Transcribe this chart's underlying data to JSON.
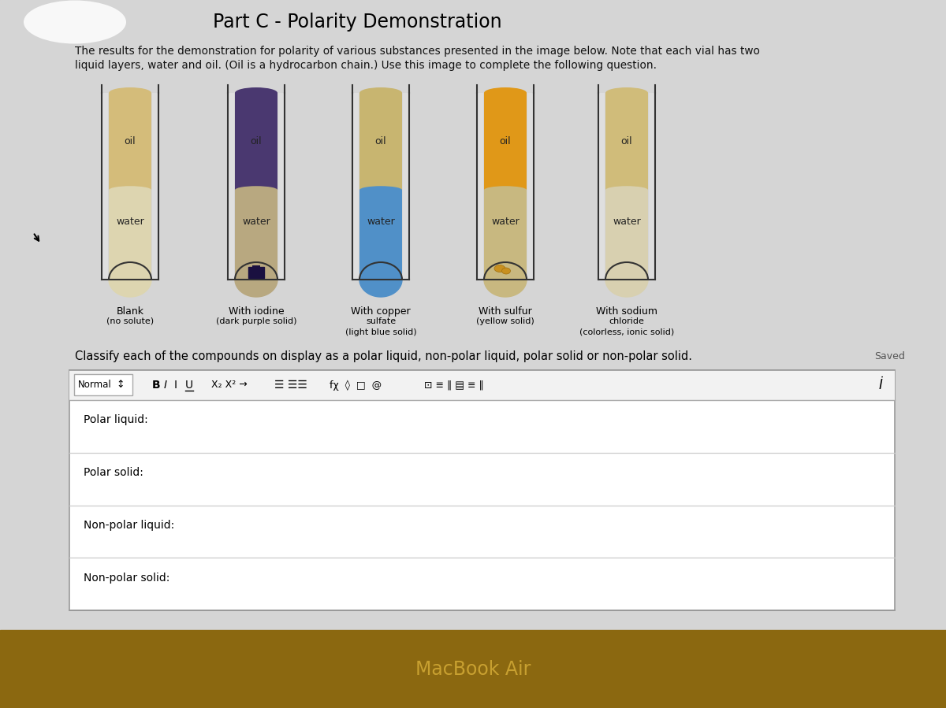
{
  "title": "Part C - Polarity Demonstration",
  "description_line1": "The results for the demonstration for polarity of various substances presented in the image below. Note that each vial has two",
  "description_line2": "liquid layers, water and oil. (Oil is a hydrocarbon chain.) Use this image to complete the following question.",
  "bg_color": "#c2c2c2",
  "vials": [
    {
      "labels": [
        "Blank",
        "(no solute)"
      ],
      "oil_color": "#d4bc7a",
      "water_color": "#ddd5b0",
      "has_solute": false,
      "solute_type": null
    },
    {
      "labels": [
        "With iodine",
        "(dark purple solid)"
      ],
      "oil_color": "#4a3870",
      "water_color": "#b8a880",
      "has_solute": true,
      "solute_type": "iodine"
    },
    {
      "labels": [
        "With copper",
        "sulfate",
        "(light blue solid)"
      ],
      "oil_color": "#c8b570",
      "water_color": "#5090c8",
      "has_solute": false,
      "solute_type": "copper"
    },
    {
      "labels": [
        "With sulfur",
        "(yellow solid)"
      ],
      "oil_color": "#e09818",
      "water_color": "#c8b880",
      "has_solute": true,
      "solute_type": "sulfur"
    },
    {
      "labels": [
        "With sodium",
        "chloride",
        "(colorless, ionic solid)"
      ],
      "oil_color": "#d0bc7a",
      "water_color": "#d8d0b0",
      "has_solute": false,
      "solute_type": null
    }
  ],
  "classify_text": "Classify each of the compounds on display as a polar liquid, non-polar liquid, polar solid or non-polar solid.",
  "saved_text": "Saved",
  "response_labels": [
    "Polar liquid:",
    "Polar solid:",
    "Non-polar liquid:",
    "Non-polar solid:"
  ],
  "macbook_text": "MacBook Air",
  "bottom_bar_color": "#8B6810",
  "macbook_text_color": "#c8a030"
}
